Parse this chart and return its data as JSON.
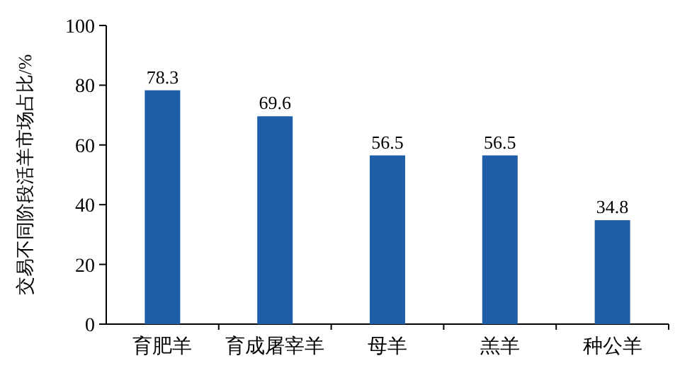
{
  "chart_data": {
    "type": "bar",
    "ylabel": "交易不同阶段活羊市场占比/%",
    "categories": [
      "育肥羊",
      "育成屠宰羊",
      "母羊",
      "羔羊",
      "种公羊"
    ],
    "values": [
      78.3,
      69.6,
      56.5,
      56.5,
      34.8
    ],
    "color": "#1f5fa9",
    "ylim": [
      0,
      100
    ],
    "yticks": [
      0,
      20,
      40,
      60,
      80,
      100
    ],
    "data_labels": true
  }
}
